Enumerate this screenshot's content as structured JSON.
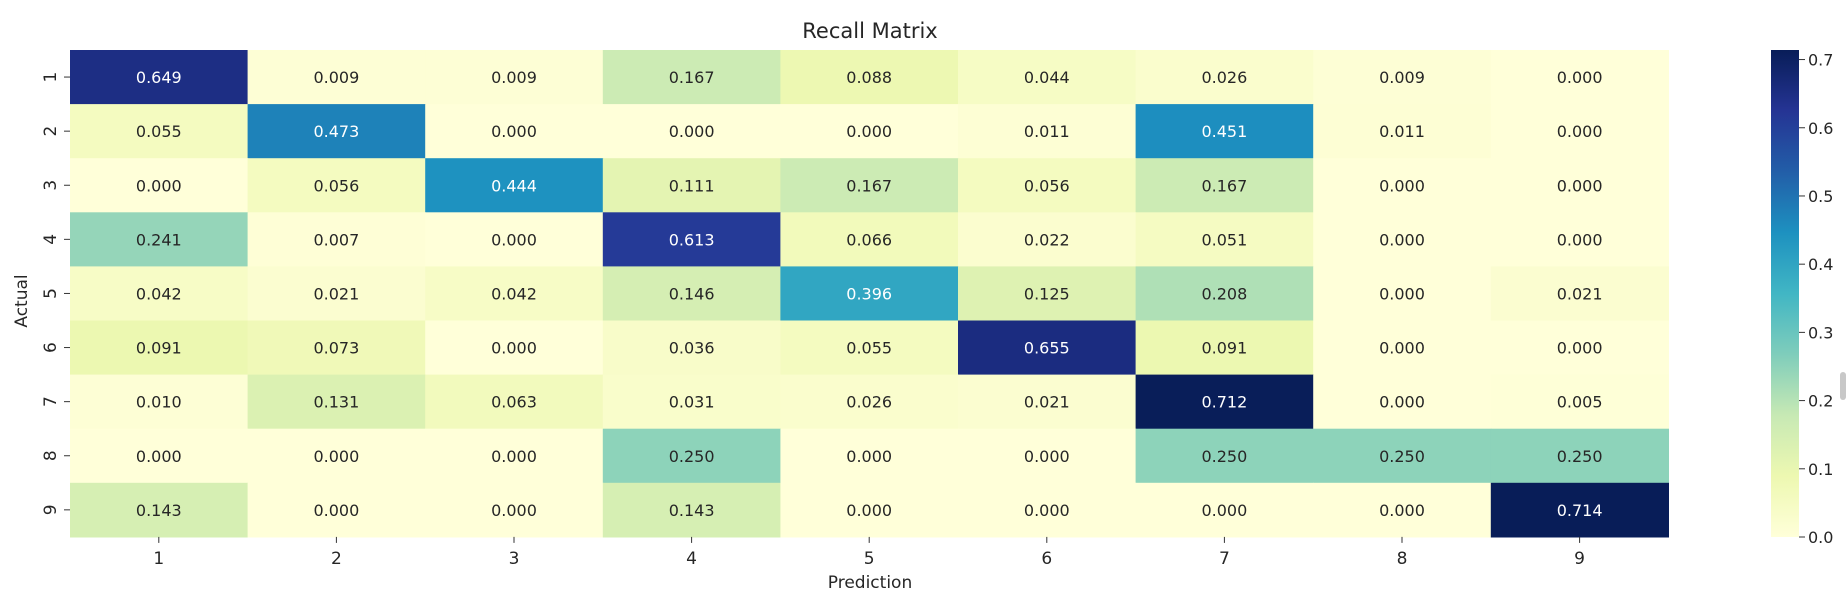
{
  "chart_data": {
    "type": "heatmap",
    "title": "Recall Matrix",
    "xlabel": "Prediction",
    "ylabel": "Actual",
    "x_categories": [
      "1",
      "2",
      "3",
      "4",
      "5",
      "6",
      "7",
      "8",
      "9"
    ],
    "y_categories": [
      "1",
      "2",
      "3",
      "4",
      "5",
      "6",
      "7",
      "8",
      "9"
    ],
    "values": [
      [
        0.649,
        0.009,
        0.009,
        0.167,
        0.088,
        0.044,
        0.026,
        0.009,
        0.0
      ],
      [
        0.055,
        0.473,
        0.0,
        0.0,
        0.0,
        0.011,
        0.451,
        0.011,
        0.0
      ],
      [
        0.0,
        0.056,
        0.444,
        0.111,
        0.167,
        0.056,
        0.167,
        0.0,
        0.0
      ],
      [
        0.241,
        0.007,
        0.0,
        0.613,
        0.066,
        0.022,
        0.051,
        0.0,
        0.0
      ],
      [
        0.042,
        0.021,
        0.042,
        0.146,
        0.396,
        0.125,
        0.208,
        0.0,
        0.021
      ],
      [
        0.091,
        0.073,
        0.0,
        0.036,
        0.055,
        0.655,
        0.091,
        0.0,
        0.0
      ],
      [
        0.01,
        0.131,
        0.063,
        0.031,
        0.026,
        0.021,
        0.712,
        0.0,
        0.005
      ],
      [
        0.0,
        0.0,
        0.0,
        0.25,
        0.0,
        0.0,
        0.25,
        0.25,
        0.25
      ],
      [
        0.143,
        0.0,
        0.0,
        0.143,
        0.0,
        0.0,
        0.0,
        0.0,
        0.714
      ]
    ],
    "value_format": "0.000",
    "colormap": "YlGnBu",
    "colorbar": {
      "range": [
        0.0,
        0.714
      ],
      "ticks": [
        "0.0",
        "0.1",
        "0.2",
        "0.3",
        "0.4",
        "0.5",
        "0.6",
        "0.7"
      ]
    },
    "grid": false,
    "legend": "colorbar-right"
  }
}
